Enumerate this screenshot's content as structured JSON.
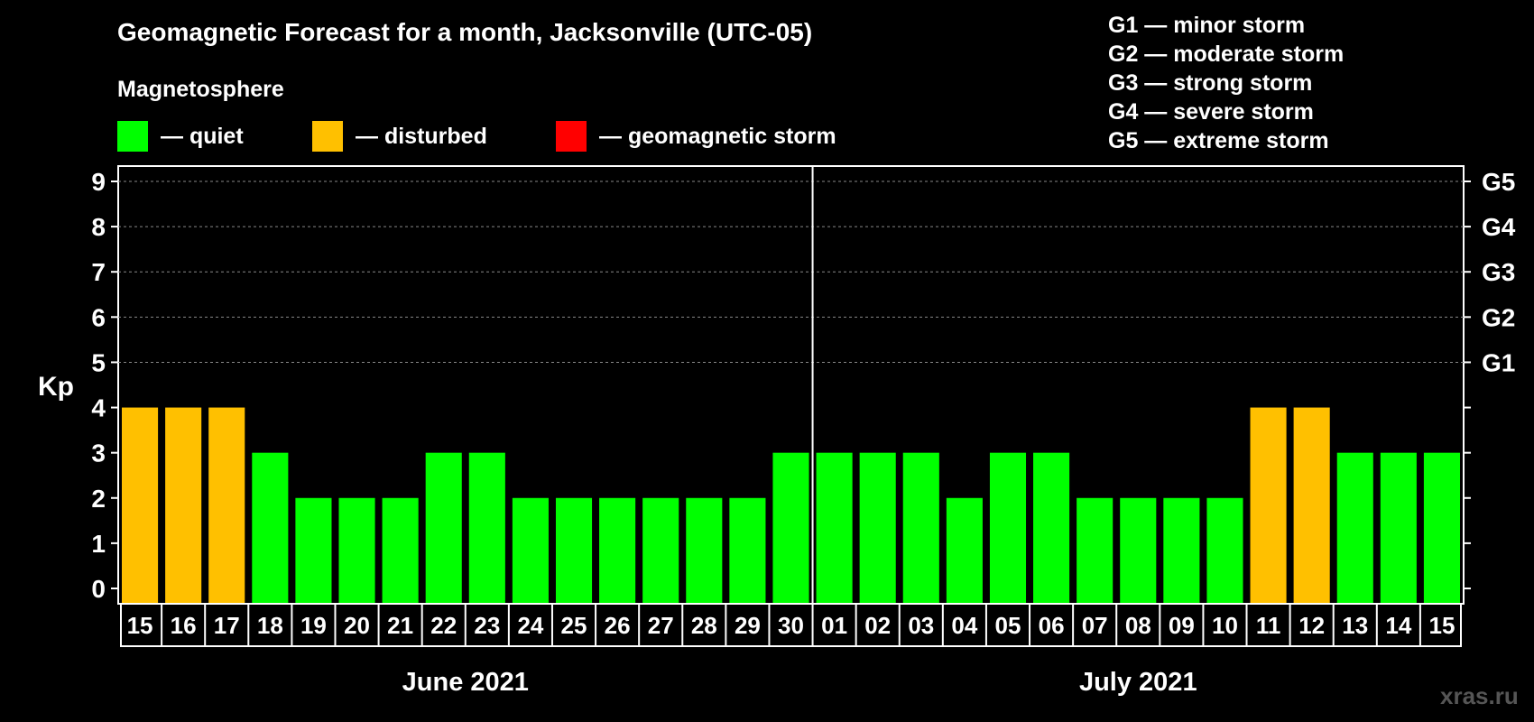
{
  "title": "Geomagnetic Forecast for a month, Jacksonville (UTC-05)",
  "magnetosphere_label": "Magnetosphere",
  "legend": [
    {
      "label": "— quiet",
      "color": "#00ff00"
    },
    {
      "label": "— disturbed",
      "color": "#ffc000"
    },
    {
      "label": "— geomagnetic storm",
      "color": "#ff0000"
    }
  ],
  "storm_scale": [
    "G1 — minor storm",
    "G2 — moderate storm",
    "G3 — strong storm",
    "G4 — severe storm",
    "G5 — extreme storm"
  ],
  "watermark": "xras.ru",
  "chart_data": {
    "type": "bar",
    "ylabel": "Kp",
    "ylim": [
      0,
      9
    ],
    "yticks": [
      0,
      1,
      2,
      3,
      4,
      5,
      6,
      7,
      8,
      9
    ],
    "right_axis_labels": [
      {
        "kp": 5,
        "label": "G1"
      },
      {
        "kp": 6,
        "label": "G2"
      },
      {
        "kp": 7,
        "label": "G3"
      },
      {
        "kp": 8,
        "label": "G4"
      },
      {
        "kp": 9,
        "label": "G5"
      }
    ],
    "categories": [
      "15",
      "16",
      "17",
      "18",
      "19",
      "20",
      "21",
      "22",
      "23",
      "24",
      "25",
      "26",
      "27",
      "28",
      "29",
      "30",
      "01",
      "02",
      "03",
      "04",
      "05",
      "06",
      "07",
      "08",
      "09",
      "10",
      "11",
      "12",
      "13",
      "14",
      "15"
    ],
    "values": [
      4,
      4,
      4,
      3,
      2,
      2,
      2,
      3,
      3,
      2,
      2,
      2,
      2,
      2,
      2,
      3,
      3,
      3,
      3,
      2,
      3,
      3,
      2,
      2,
      2,
      2,
      4,
      4,
      3,
      3,
      3
    ],
    "status": [
      "disturbed",
      "disturbed",
      "disturbed",
      "quiet",
      "quiet",
      "quiet",
      "quiet",
      "quiet",
      "quiet",
      "quiet",
      "quiet",
      "quiet",
      "quiet",
      "quiet",
      "quiet",
      "quiet",
      "quiet",
      "quiet",
      "quiet",
      "quiet",
      "quiet",
      "quiet",
      "quiet",
      "quiet",
      "quiet",
      "quiet",
      "disturbed",
      "disturbed",
      "quiet",
      "quiet",
      "quiet"
    ],
    "months": [
      {
        "label": "June 2021",
        "days": 16
      },
      {
        "label": "July 2021",
        "days": 15
      }
    ],
    "grid": true
  }
}
